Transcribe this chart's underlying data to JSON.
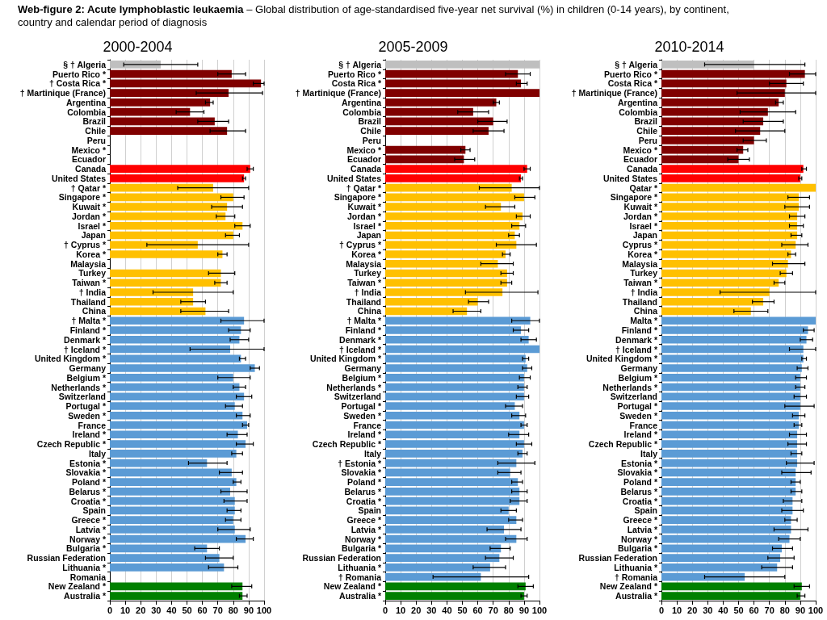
{
  "chart_data": [
    {
      "type": "bar",
      "orientation": "horizontal",
      "title": "2000-2004",
      "annotations": [
        "Web-figure 2: Acute lymphoblastic leukaemia",
        "– Global distribution of age-standardised five-year net survival (%) in children (0-14 years), by continent, country and calendar period of diagnosis"
      ],
      "categories": [
        "§ † Algeria",
        "Puerto Rico *",
        "† Costa Rica *",
        "† Martinique (France)",
        "Argentina",
        "Colombia",
        "Brazil",
        "Chile",
        "Peru",
        "Mexico *",
        "Ecuador",
        "Canada",
        "United States",
        "† Qatar *",
        "Singapore *",
        "Kuwait *",
        "Jordan *",
        "Israel *",
        "Japan",
        "† Cyprus *",
        "Korea *",
        "Malaysia",
        "Turkey",
        "Taiwan *",
        "† India",
        "Thailand",
        "China",
        "† Malta *",
        "Finland *",
        "Denmark *",
        "† Iceland *",
        "United Kingdom *",
        "Germany",
        "Belgium *",
        "Netherlands *",
        "Switzerland",
        "Portugal *",
        "Sweden *",
        "France",
        "Ireland *",
        "Czech Republic *",
        "Italy",
        "Estonia *",
        "Slovakia *",
        "Poland *",
        "Belarus *",
        "Croatia *",
        "Spain",
        "Greece *",
        "Latvia *",
        "Norway *",
        "Bulgaria *",
        "Russian Federation",
        "Lithuania *",
        "Romania",
        "New Zealand *",
        "Australia *"
      ],
      "values": [
        33,
        79,
        98,
        77,
        65,
        52,
        68,
        76,
        null,
        null,
        null,
        91,
        87,
        67,
        80,
        76,
        75,
        86,
        80,
        57,
        73,
        null,
        72,
        72,
        54,
        54,
        62,
        87,
        85,
        84,
        78,
        85,
        94,
        80,
        84,
        87,
        81,
        86,
        89,
        83,
        88,
        82,
        63,
        79,
        82,
        78,
        81,
        81,
        80,
        81,
        88,
        63,
        71,
        74,
        null,
        86,
        86
      ],
      "errors": [
        [
          9,
          57
        ],
        [
          70,
          88
        ],
        [
          93,
          100
        ],
        [
          56,
          99
        ],
        [
          62,
          67
        ],
        [
          43,
          61
        ],
        [
          57,
          77
        ],
        [
          65,
          88
        ],
        null,
        null,
        null,
        [
          89,
          93
        ],
        [
          86,
          88
        ],
        [
          44,
          90
        ],
        [
          72,
          87
        ],
        [
          66,
          86
        ],
        [
          69,
          81
        ],
        [
          81,
          91
        ],
        [
          75,
          84
        ],
        [
          24,
          90
        ],
        [
          70,
          76
        ],
        null,
        [
          64,
          81
        ],
        [
          68,
          76
        ],
        [
          28,
          80
        ],
        [
          46,
          62
        ],
        [
          46,
          77
        ],
        [
          72,
          100
        ],
        [
          77,
          91
        ],
        [
          78,
          90
        ],
        [
          52,
          100
        ],
        [
          84,
          88
        ],
        [
          91,
          97
        ],
        [
          70,
          91
        ],
        [
          80,
          88
        ],
        [
          82,
          92
        ],
        [
          75,
          86
        ],
        [
          82,
          91
        ],
        [
          86,
          90
        ],
        [
          76,
          89
        ],
        [
          82,
          93
        ],
        [
          79,
          86
        ],
        [
          51,
          76
        ],
        [
          71,
          86
        ],
        [
          80,
          85
        ],
        [
          72,
          89
        ],
        [
          74,
          89
        ],
        [
          76,
          85
        ],
        [
          75,
          85
        ],
        [
          70,
          91
        ],
        [
          82,
          93
        ],
        [
          55,
          71
        ],
        [
          62,
          80
        ],
        [
          64,
          83
        ],
        null,
        [
          79,
          92
        ],
        [
          84,
          89
        ]
      ],
      "colors": [
        "#bfbfbf",
        "#800000",
        "#800000",
        "#800000",
        "#800000",
        "#800000",
        "#800000",
        "#800000",
        "#800000",
        "#800000",
        "#800000",
        "#ff0000",
        "#ff0000",
        "#ffc000",
        "#ffc000",
        "#ffc000",
        "#ffc000",
        "#ffc000",
        "#ffc000",
        "#ffc000",
        "#ffc000",
        "#ffc000",
        "#ffc000",
        "#ffc000",
        "#ffc000",
        "#ffc000",
        "#ffc000",
        "#5b9bd5",
        "#5b9bd5",
        "#5b9bd5",
        "#5b9bd5",
        "#5b9bd5",
        "#5b9bd5",
        "#5b9bd5",
        "#5b9bd5",
        "#5b9bd5",
        "#5b9bd5",
        "#5b9bd5",
        "#5b9bd5",
        "#5b9bd5",
        "#5b9bd5",
        "#5b9bd5",
        "#5b9bd5",
        "#5b9bd5",
        "#5b9bd5",
        "#5b9bd5",
        "#5b9bd5",
        "#5b9bd5",
        "#5b9bd5",
        "#5b9bd5",
        "#5b9bd5",
        "#5b9bd5",
        "#5b9bd5",
        "#5b9bd5",
        "#5b9bd5",
        "#008000",
        "#008000"
      ],
      "xlim": [
        0,
        100
      ],
      "xticks": [
        0,
        10,
        20,
        30,
        40,
        50,
        60,
        70,
        80,
        90,
        100
      ],
      "grid": "x"
    },
    {
      "type": "bar",
      "orientation": "horizontal",
      "title": "2005-2009",
      "categories": [
        "§ † Algeria",
        "Puerto Rico *",
        "Costa Rica *",
        "† Martinique (France)",
        "Argentina",
        "Colombia",
        "Brazil",
        "Chile",
        "Peru",
        "Mexico *",
        "Ecuador",
        "Canada",
        "United States",
        "† Qatar *",
        "Singapore *",
        "Kuwait *",
        "Jordan *",
        "Israel *",
        "Japan",
        "† Cyprus *",
        "Korea *",
        "Malaysia",
        "Turkey",
        "Taiwan *",
        "† India",
        "Thailand",
        "China",
        "† Malta *",
        "Finland *",
        "Denmark *",
        "† Iceland *",
        "United Kingdom *",
        "Germany",
        "Belgium *",
        "Netherlands *",
        "Switzerland",
        "Portugal *",
        "Sweden *",
        "France",
        "Ireland *",
        "Czech Republic *",
        "Italy",
        "† Estonia *",
        "Slovakia *",
        "Poland *",
        "Belarus *",
        "Croatia *",
        "Spain",
        "Greece *",
        "Latvia *",
        "Norway *",
        "Bulgaria *",
        "Russian Federation",
        "Lithuania *",
        "† Romania",
        "New Zealand *",
        "Australia *"
      ],
      "values": [
        100,
        86,
        88,
        100,
        72,
        57,
        70,
        67,
        null,
        52,
        51,
        92,
        88,
        82,
        90,
        75,
        89,
        87,
        84,
        85,
        78,
        73,
        79,
        79,
        76,
        60,
        53,
        94,
        88,
        93,
        100,
        91,
        92,
        90,
        90,
        90,
        84,
        87,
        90,
        87,
        90,
        89,
        85,
        81,
        86,
        87,
        87,
        80,
        85,
        77,
        85,
        75,
        74,
        68,
        62,
        91,
        90
      ],
      "errors": [
        null,
        [
          78,
          94
        ],
        [
          85,
          92
        ],
        null,
        [
          70,
          74
        ],
        [
          47,
          67
        ],
        [
          60,
          79
        ],
        [
          57,
          77
        ],
        null,
        [
          49,
          55
        ],
        [
          45,
          58
        ],
        [
          90,
          94
        ],
        [
          87,
          89
        ],
        [
          61,
          100
        ],
        [
          84,
          97
        ],
        [
          65,
          84
        ],
        [
          85,
          94
        ],
        [
          82,
          91
        ],
        [
          80,
          87
        ],
        [
          72,
          98
        ],
        [
          76,
          81
        ],
        [
          62,
          83
        ],
        [
          75,
          83
        ],
        [
          75,
          82
        ],
        [
          52,
          99
        ],
        [
          54,
          67
        ],
        [
          44,
          62
        ],
        [
          82,
          100
        ],
        [
          83,
          93
        ],
        [
          88,
          98
        ],
        null,
        [
          89,
          93
        ],
        [
          89,
          95
        ],
        [
          87,
          94
        ],
        [
          86,
          92
        ],
        [
          85,
          93
        ],
        [
          78,
          89
        ],
        [
          82,
          91
        ],
        [
          88,
          92
        ],
        [
          80,
          93
        ],
        [
          85,
          95
        ],
        [
          86,
          92
        ],
        [
          73,
          97
        ],
        [
          73,
          88
        ],
        [
          82,
          89
        ],
        [
          82,
          92
        ],
        [
          81,
          92
        ],
        [
          75,
          85
        ],
        [
          80,
          89
        ],
        [
          66,
          88
        ],
        [
          78,
          92
        ],
        [
          68,
          81
        ],
        [
          65,
          83
        ],
        [
          57,
          78
        ],
        [
          31,
          93
        ],
        [
          86,
          96
        ],
        [
          88,
          92
        ]
      ],
      "colors": [
        "#bfbfbf",
        "#800000",
        "#800000",
        "#800000",
        "#800000",
        "#800000",
        "#800000",
        "#800000",
        "#800000",
        "#800000",
        "#800000",
        "#ff0000",
        "#ff0000",
        "#ffc000",
        "#ffc000",
        "#ffc000",
        "#ffc000",
        "#ffc000",
        "#ffc000",
        "#ffc000",
        "#ffc000",
        "#ffc000",
        "#ffc000",
        "#ffc000",
        "#ffc000",
        "#ffc000",
        "#ffc000",
        "#5b9bd5",
        "#5b9bd5",
        "#5b9bd5",
        "#5b9bd5",
        "#5b9bd5",
        "#5b9bd5",
        "#5b9bd5",
        "#5b9bd5",
        "#5b9bd5",
        "#5b9bd5",
        "#5b9bd5",
        "#5b9bd5",
        "#5b9bd5",
        "#5b9bd5",
        "#5b9bd5",
        "#5b9bd5",
        "#5b9bd5",
        "#5b9bd5",
        "#5b9bd5",
        "#5b9bd5",
        "#5b9bd5",
        "#5b9bd5",
        "#5b9bd5",
        "#5b9bd5",
        "#5b9bd5",
        "#5b9bd5",
        "#5b9bd5",
        "#5b9bd5",
        "#008000",
        "#008000"
      ],
      "xlim": [
        0,
        100
      ],
      "xticks": [
        0,
        10,
        20,
        30,
        40,
        50,
        60,
        70,
        80,
        90,
        100
      ],
      "grid": "x"
    },
    {
      "type": "bar",
      "orientation": "horizontal",
      "title": "2010-2014",
      "categories": [
        "§ † Algeria",
        "Puerto Rico *",
        "Costa Rica *",
        "† Martinique (France)",
        "Argentina",
        "Colombia",
        "Brazil",
        "Chile",
        "Peru",
        "Mexico *",
        "Ecuador",
        "Canada",
        "United States",
        "Qatar *",
        "Singapore *",
        "Kuwait *",
        "Jordan *",
        "Israel *",
        "Japan",
        "Cyprus *",
        "Korea *",
        "Malaysia",
        "Turkey",
        "Taiwan *",
        "† India",
        "Thailand",
        "China",
        "Malta *",
        "Finland *",
        "Denmark *",
        "† Iceland *",
        "United Kingdom *",
        "Germany",
        "Belgium *",
        "Netherlands *",
        "Switzerland",
        "Portugal *",
        "Sweden *",
        "France",
        "Ireland *",
        "Czech Republic *",
        "Italy",
        "Estonia *",
        "Slovakia *",
        "Poland *",
        "Belarus *",
        "Croatia *",
        "Spain",
        "Greece *",
        "Latvia *",
        "Norway *",
        "Bulgaria *",
        "Russian Federation",
        "Lithuania *",
        "† Romania",
        "New Zealand *",
        "Australia *"
      ],
      "values": [
        60,
        93,
        81,
        80,
        76,
        69,
        66,
        64,
        60,
        53,
        50,
        92,
        90,
        100,
        89,
        89,
        88,
        88,
        88,
        87,
        84,
        82,
        81,
        76,
        70,
        66,
        58,
        100,
        95,
        94,
        92,
        92,
        91,
        90,
        90,
        90,
        90,
        89,
        89,
        88,
        88,
        88,
        88,
        87,
        87,
        87,
        85,
        85,
        84,
        84,
        83,
        78,
        77,
        75,
        54,
        91,
        90
      ],
      "errors": [
        [
          28,
          93
        ],
        [
          83,
          100
        ],
        [
          70,
          92
        ],
        [
          49,
          100
        ],
        [
          74,
          79
        ],
        [
          51,
          87
        ],
        [
          53,
          79
        ],
        [
          48,
          80
        ],
        [
          53,
          68
        ],
        [
          49,
          56
        ],
        [
          43,
          57
        ],
        [
          91,
          94
        ],
        [
          89,
          91
        ],
        null,
        [
          82,
          96
        ],
        [
          80,
          96
        ],
        [
          83,
          93
        ],
        [
          83,
          92
        ],
        [
          84,
          91
        ],
        [
          78,
          95
        ],
        [
          82,
          87
        ],
        [
          72,
          93
        ],
        [
          77,
          85
        ],
        [
          73,
          80
        ],
        [
          38,
          100
        ],
        [
          59,
          73
        ],
        [
          47,
          69
        ],
        null,
        [
          92,
          99
        ],
        [
          90,
          98
        ],
        [
          83,
          100
        ],
        [
          91,
          94
        ],
        [
          88,
          95
        ],
        [
          87,
          94
        ],
        [
          87,
          93
        ],
        [
          86,
          94
        ],
        [
          80,
          99
        ],
        [
          85,
          93
        ],
        [
          86,
          91
        ],
        [
          83,
          94
        ],
        [
          82,
          94
        ],
        [
          84,
          91
        ],
        [
          81,
          99
        ],
        [
          78,
          97
        ],
        [
          84,
          90
        ],
        [
          84,
          91
        ],
        [
          79,
          91
        ],
        [
          78,
          92
        ],
        [
          80,
          88
        ],
        [
          73,
          95
        ],
        [
          76,
          90
        ],
        [
          72,
          85
        ],
        [
          69,
          86
        ],
        [
          65,
          85
        ],
        [
          28,
          80
        ],
        [
          86,
          96
        ],
        [
          88,
          93
        ]
      ],
      "colors": [
        "#bfbfbf",
        "#800000",
        "#800000",
        "#800000",
        "#800000",
        "#800000",
        "#800000",
        "#800000",
        "#800000",
        "#800000",
        "#800000",
        "#ff0000",
        "#ff0000",
        "#ffc000",
        "#ffc000",
        "#ffc000",
        "#ffc000",
        "#ffc000",
        "#ffc000",
        "#ffc000",
        "#ffc000",
        "#ffc000",
        "#ffc000",
        "#ffc000",
        "#ffc000",
        "#ffc000",
        "#ffc000",
        "#5b9bd5",
        "#5b9bd5",
        "#5b9bd5",
        "#5b9bd5",
        "#5b9bd5",
        "#5b9bd5",
        "#5b9bd5",
        "#5b9bd5",
        "#5b9bd5",
        "#5b9bd5",
        "#5b9bd5",
        "#5b9bd5",
        "#5b9bd5",
        "#5b9bd5",
        "#5b9bd5",
        "#5b9bd5",
        "#5b9bd5",
        "#5b9bd5",
        "#5b9bd5",
        "#5b9bd5",
        "#5b9bd5",
        "#5b9bd5",
        "#5b9bd5",
        "#5b9bd5",
        "#5b9bd5",
        "#5b9bd5",
        "#5b9bd5",
        "#5b9bd5",
        "#008000",
        "#008000"
      ],
      "xlim": [
        0,
        100
      ],
      "xticks": [
        0,
        10,
        20,
        30,
        40,
        50,
        60,
        70,
        80,
        90,
        100
      ],
      "grid": "x"
    }
  ]
}
